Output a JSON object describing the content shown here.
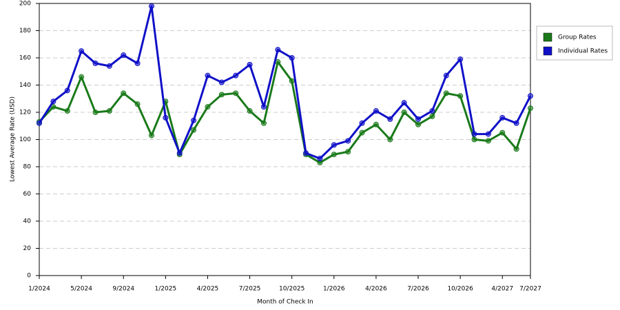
{
  "chart_data": {
    "type": "line",
    "x_label": "Month of Check In",
    "y_label": "Lowest Average Rate (USD)",
    "categories": [
      "1/2024",
      null,
      null,
      "5/2024",
      null,
      null,
      "9/2024",
      null,
      null,
      "1/2025",
      null,
      null,
      "4/2025",
      null,
      null,
      "7/2025",
      null,
      null,
      "10/2025",
      null,
      null,
      "1/2026",
      null,
      null,
      "4/2026",
      null,
      null,
      "7/2026",
      null,
      null,
      "10/2026",
      null,
      null,
      "4/2027",
      null,
      "7/2027"
    ],
    "series": [
      {
        "name": "Group Rates",
        "color": "#1a7a1a",
        "values": [
          113,
          124,
          121,
          146,
          120,
          121,
          134,
          126,
          103,
          128,
          89,
          107,
          124,
          133,
          134,
          121,
          112,
          157,
          143,
          89,
          83,
          89,
          91,
          105,
          111,
          100,
          120,
          111,
          117,
          134,
          132,
          100,
          99,
          105,
          93,
          123
        ]
      },
      {
        "name": "Individual Rates",
        "color": "#1010c8",
        "values": [
          112,
          128,
          136,
          165,
          156,
          154,
          162,
          156,
          198,
          116,
          90,
          114,
          147,
          142,
          147,
          155,
          124,
          166,
          160,
          90,
          86,
          96,
          99,
          112,
          121,
          115,
          127,
          115,
          121,
          147,
          159,
          104,
          104,
          116,
          112,
          132
        ]
      }
    ],
    "ylim": [
      0,
      200
    ],
    "yticks": [
      0,
      20,
      40,
      60,
      80,
      100,
      120,
      140,
      160,
      180,
      200
    ],
    "grid": true,
    "legend": "right"
  }
}
